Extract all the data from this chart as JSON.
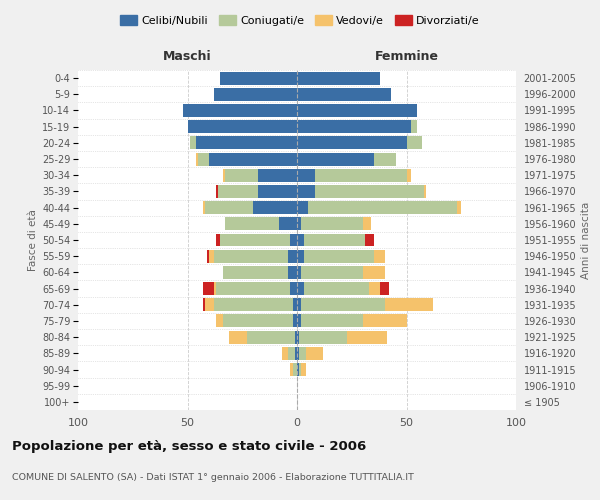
{
  "age_groups": [
    "100+",
    "95-99",
    "90-94",
    "85-89",
    "80-84",
    "75-79",
    "70-74",
    "65-69",
    "60-64",
    "55-59",
    "50-54",
    "45-49",
    "40-44",
    "35-39",
    "30-34",
    "25-29",
    "20-24",
    "15-19",
    "10-14",
    "5-9",
    "0-4"
  ],
  "birth_years": [
    "≤ 1905",
    "1906-1910",
    "1911-1915",
    "1916-1920",
    "1921-1925",
    "1926-1930",
    "1931-1935",
    "1936-1940",
    "1941-1945",
    "1946-1950",
    "1951-1955",
    "1956-1960",
    "1961-1965",
    "1966-1970",
    "1971-1975",
    "1976-1980",
    "1981-1985",
    "1986-1990",
    "1991-1995",
    "1996-2000",
    "2001-2005"
  ],
  "maschi": {
    "celibi": [
      0,
      0,
      0,
      1,
      1,
      2,
      2,
      3,
      4,
      4,
      3,
      8,
      20,
      18,
      18,
      40,
      46,
      50,
      52,
      38,
      35
    ],
    "coniugati": [
      0,
      0,
      2,
      3,
      22,
      32,
      36,
      34,
      30,
      34,
      32,
      25,
      22,
      18,
      15,
      5,
      3,
      0,
      0,
      0,
      0
    ],
    "vedovi": [
      0,
      0,
      1,
      3,
      8,
      3,
      4,
      1,
      0,
      2,
      0,
      0,
      1,
      0,
      1,
      1,
      0,
      0,
      0,
      0,
      0
    ],
    "divorziati": [
      0,
      0,
      0,
      0,
      0,
      0,
      1,
      5,
      0,
      1,
      2,
      0,
      0,
      1,
      0,
      0,
      0,
      0,
      0,
      0,
      0
    ]
  },
  "femmine": {
    "nubili": [
      0,
      0,
      1,
      1,
      1,
      2,
      2,
      3,
      2,
      3,
      3,
      2,
      5,
      8,
      8,
      35,
      50,
      52,
      55,
      43,
      38
    ],
    "coniugate": [
      0,
      0,
      1,
      3,
      22,
      28,
      38,
      30,
      28,
      32,
      28,
      28,
      68,
      50,
      42,
      10,
      7,
      3,
      0,
      0,
      0
    ],
    "vedove": [
      0,
      0,
      2,
      8,
      18,
      20,
      22,
      5,
      10,
      5,
      0,
      4,
      2,
      1,
      2,
      0,
      0,
      0,
      0,
      0,
      0
    ],
    "divorziate": [
      0,
      0,
      0,
      0,
      0,
      0,
      0,
      4,
      0,
      0,
      4,
      0,
      0,
      0,
      0,
      0,
      0,
      0,
      0,
      0,
      0
    ]
  },
  "colors": {
    "celibi": "#3a6ea5",
    "coniugati": "#b5c99a",
    "vedovi": "#f5c26b",
    "divorziati": "#cc2222"
  },
  "xlim": 100,
  "title": "Popolazione per età, sesso e stato civile - 2006",
  "subtitle": "COMUNE DI SALENTO (SA) - Dati ISTAT 1° gennaio 2006 - Elaborazione TUTTITALIA.IT",
  "ylabel_left": "Fasce di età",
  "ylabel_right": "Anni di nascita",
  "xlabel_left": "Maschi",
  "xlabel_right": "Femmine",
  "bg_color": "#f0f0f0",
  "plot_bg": "#ffffff"
}
